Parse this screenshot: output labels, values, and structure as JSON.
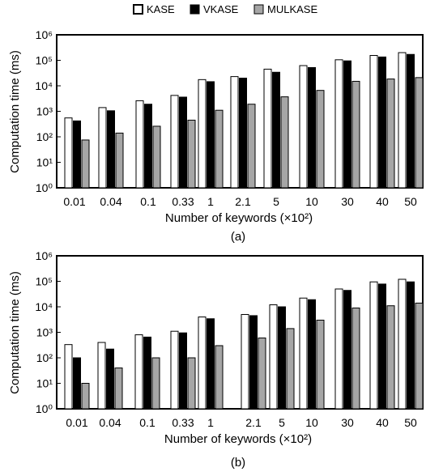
{
  "legend": {
    "position": "top-center",
    "entries": [
      {
        "name": "KASE",
        "color": "#ffffff"
      },
      {
        "name": "VKASE",
        "color": "#000000"
      },
      {
        "name": "MULKASE",
        "color": "#a6a6a6"
      }
    ]
  },
  "chart_data": [
    {
      "type": "bar",
      "caption": "(a)",
      "xlabel": "Number of keywords (×10²)",
      "ylabel": "Computation time (ms)",
      "yscale": "log",
      "ylim": [
        1,
        1000000
      ],
      "yticks": [
        "10⁰",
        "10¹",
        "10²",
        "10³",
        "10⁴",
        "10⁵",
        "10⁶"
      ],
      "grid": false,
      "categories": [
        "0.01",
        "0.04",
        "0.1",
        "0.33",
        "1",
        "2.1",
        "5",
        "10",
        "30",
        "40",
        "50"
      ],
      "series": [
        {
          "name": "KASE",
          "color": "#ffffff",
          "values": [
            550,
            1400,
            2600,
            4200,
            17500,
            23000,
            45000,
            62000,
            105000,
            155000,
            200000
          ]
        },
        {
          "name": "VKASE",
          "color": "#000000",
          "values": [
            420,
            1050,
            1900,
            3600,
            14500,
            20000,
            34000,
            52000,
            95000,
            135000,
            170000
          ]
        },
        {
          "name": "MULKASE",
          "color": "#a6a6a6",
          "values": [
            75,
            140,
            260,
            450,
            1100,
            1900,
            3700,
            6600,
            15000,
            18500,
            21000
          ]
        }
      ]
    },
    {
      "type": "bar",
      "caption": "(b)",
      "xlabel": "Number of keywords (×10²)",
      "ylabel": "Computation time (ms)",
      "yscale": "log",
      "ylim": [
        1,
        1000000
      ],
      "yticks": [
        "10⁰",
        "10¹",
        "10²",
        "10³",
        "10⁴",
        "10⁵",
        "10⁶"
      ],
      "grid": false,
      "categories": [
        "0.01",
        "0.04",
        "0.1",
        "0.33",
        "1",
        "2.1",
        "5",
        "10",
        "30",
        "40",
        "50"
      ],
      "series": [
        {
          "name": "KASE",
          "color": "#ffffff",
          "values": [
            330,
            400,
            800,
            1100,
            4000,
            5000,
            12000,
            22000,
            50000,
            95000,
            120000
          ]
        },
        {
          "name": "VKASE",
          "color": "#000000",
          "values": [
            100,
            220,
            650,
            950,
            3400,
            4500,
            10000,
            19000,
            44000,
            78000,
            95000
          ]
        },
        {
          "name": "MULKASE",
          "color": "#a6a6a6",
          "values": [
            10,
            40,
            100,
            100,
            300,
            600,
            1400,
            3000,
            9000,
            11000,
            14000
          ]
        }
      ]
    }
  ]
}
